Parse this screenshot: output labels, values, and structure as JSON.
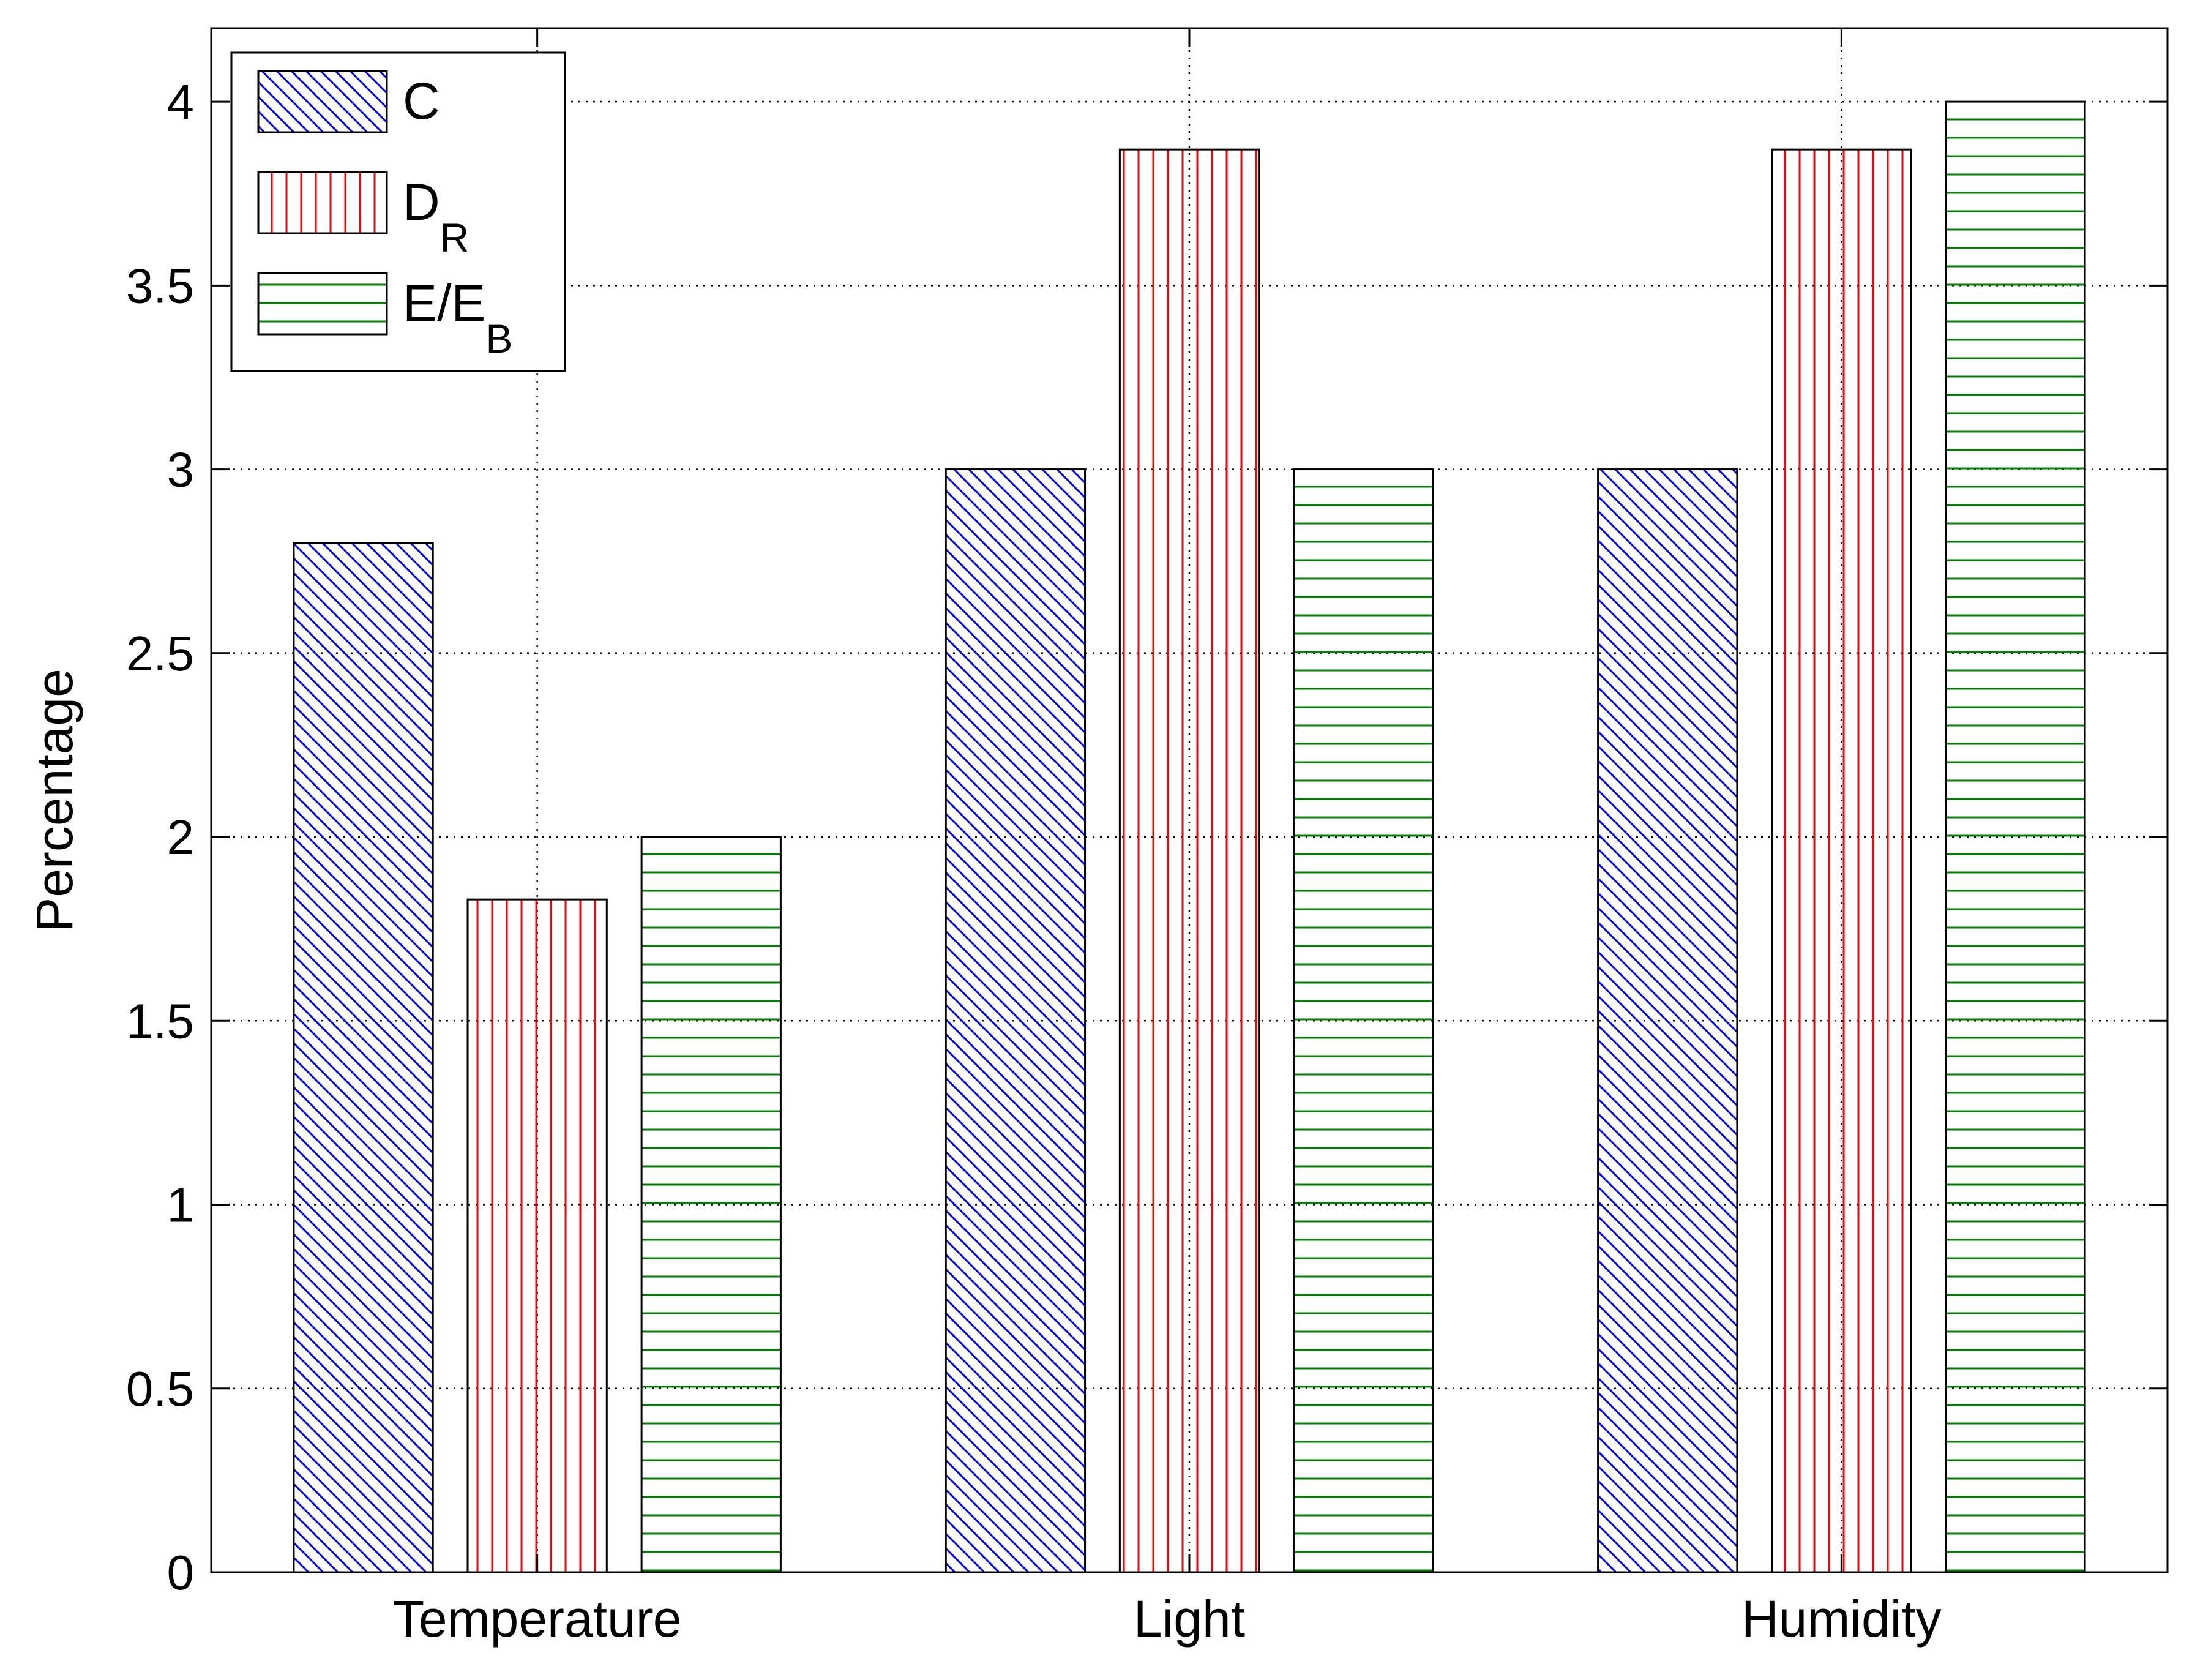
{
  "chart_data": {
    "type": "bar",
    "categories": [
      "Temperature",
      "Light",
      "Humidity"
    ],
    "series": [
      {
        "name": "C",
        "values": [
          2.8,
          3.0,
          3.0
        ],
        "color": "#0000ff",
        "hatch": "diagonal"
      },
      {
        "name": "D",
        "name_sub": "R",
        "values": [
          1.83,
          3.87,
          3.87
        ],
        "color": "#ff0000",
        "hatch": "vertical"
      },
      {
        "name": "E/E",
        "name_sub": "B",
        "values": [
          2.0,
          3.0,
          4.0
        ],
        "color": "#008000",
        "hatch": "horizontal"
      }
    ],
    "ylabel": "Percentage",
    "ylim": [
      0,
      4.2
    ],
    "yticks": [
      "0",
      "0.5",
      "1",
      "1.5",
      "2",
      "2.5",
      "3",
      "3.5",
      "4"
    ],
    "xlim": [
      0.5,
      3.5
    ],
    "grid": true,
    "legend_position": "top-left"
  }
}
